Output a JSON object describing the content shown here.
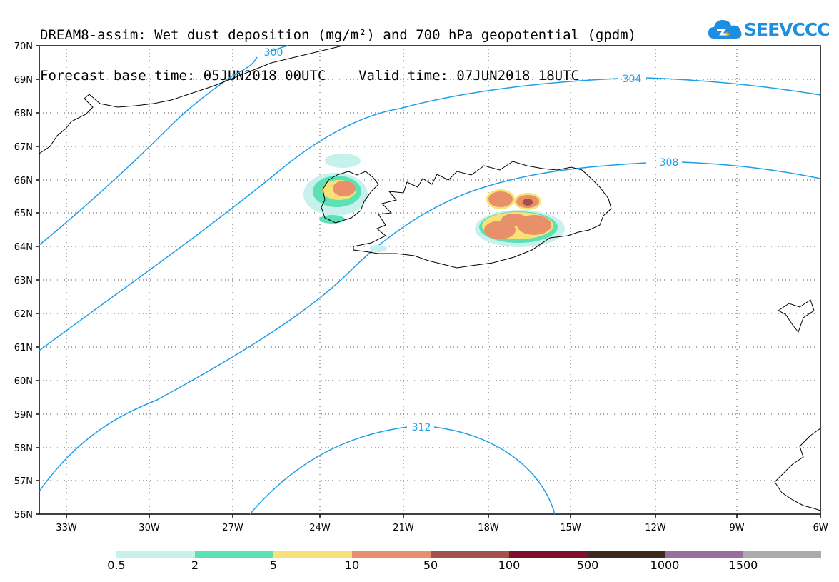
{
  "title": {
    "line1": "DREAM8-assim: Wet dust deposition (mg/m²) and 700 hPa geopotential (gpdm)",
    "line2": "Forecast base time: 05JUN2018 00UTC    Valid time: 07JUN2018 18UTC"
  },
  "logo": {
    "text": "SEEVCCC",
    "icon": "cloud-icon",
    "color": "#1e8fe0"
  },
  "map": {
    "lat_labels": [
      "70N",
      "69N",
      "68N",
      "67N",
      "66N",
      "65N",
      "64N",
      "63N",
      "62N",
      "61N",
      "60N",
      "59N",
      "58N",
      "57N",
      "56N"
    ],
    "lon_labels": [
      "33W",
      "30W",
      "27W",
      "24W",
      "21W",
      "18W",
      "15W",
      "12W",
      "9W",
      "6W"
    ],
    "contour_labels": [
      "300",
      "304",
      "308",
      "312"
    ],
    "contour_color": "#1f9ee8"
  },
  "colorbar": {
    "labels": [
      "0.5",
      "2",
      "5",
      "10",
      "50",
      "100",
      "500",
      "1000",
      "1500"
    ],
    "colors": [
      "#c6f1ec",
      "#5ce1b6",
      "#f8e278",
      "#e8906a",
      "#a3524a",
      "#7f0f2b",
      "#3d2a1e",
      "#9a6e9c",
      "#ababab"
    ]
  }
}
